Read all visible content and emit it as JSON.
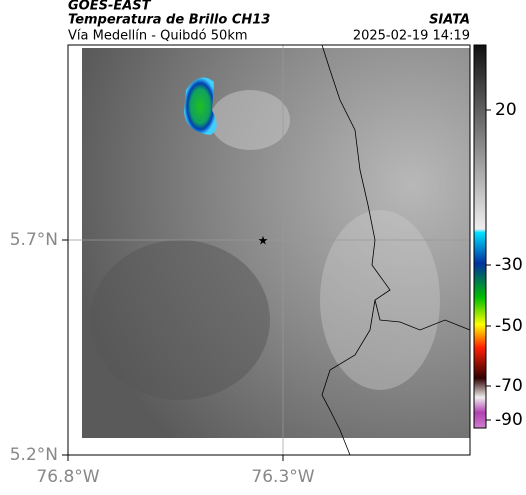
{
  "header": {
    "source": "GOES-EAST",
    "title": "Temperatura de Brillo CH13",
    "subtitle": "Vía Medellín - Quibdó 50km",
    "agency": "SIATA",
    "timestamp": "2025-02-19 14:19"
  },
  "axes": {
    "lat_ticks": [
      "5.7°N",
      "5.2°N"
    ],
    "lon_ticks": [
      "76.8°W",
      "76.3°W"
    ]
  },
  "colorbar": {
    "ticks": [
      20,
      -30,
      -50,
      -70,
      -90
    ]
  }
}
